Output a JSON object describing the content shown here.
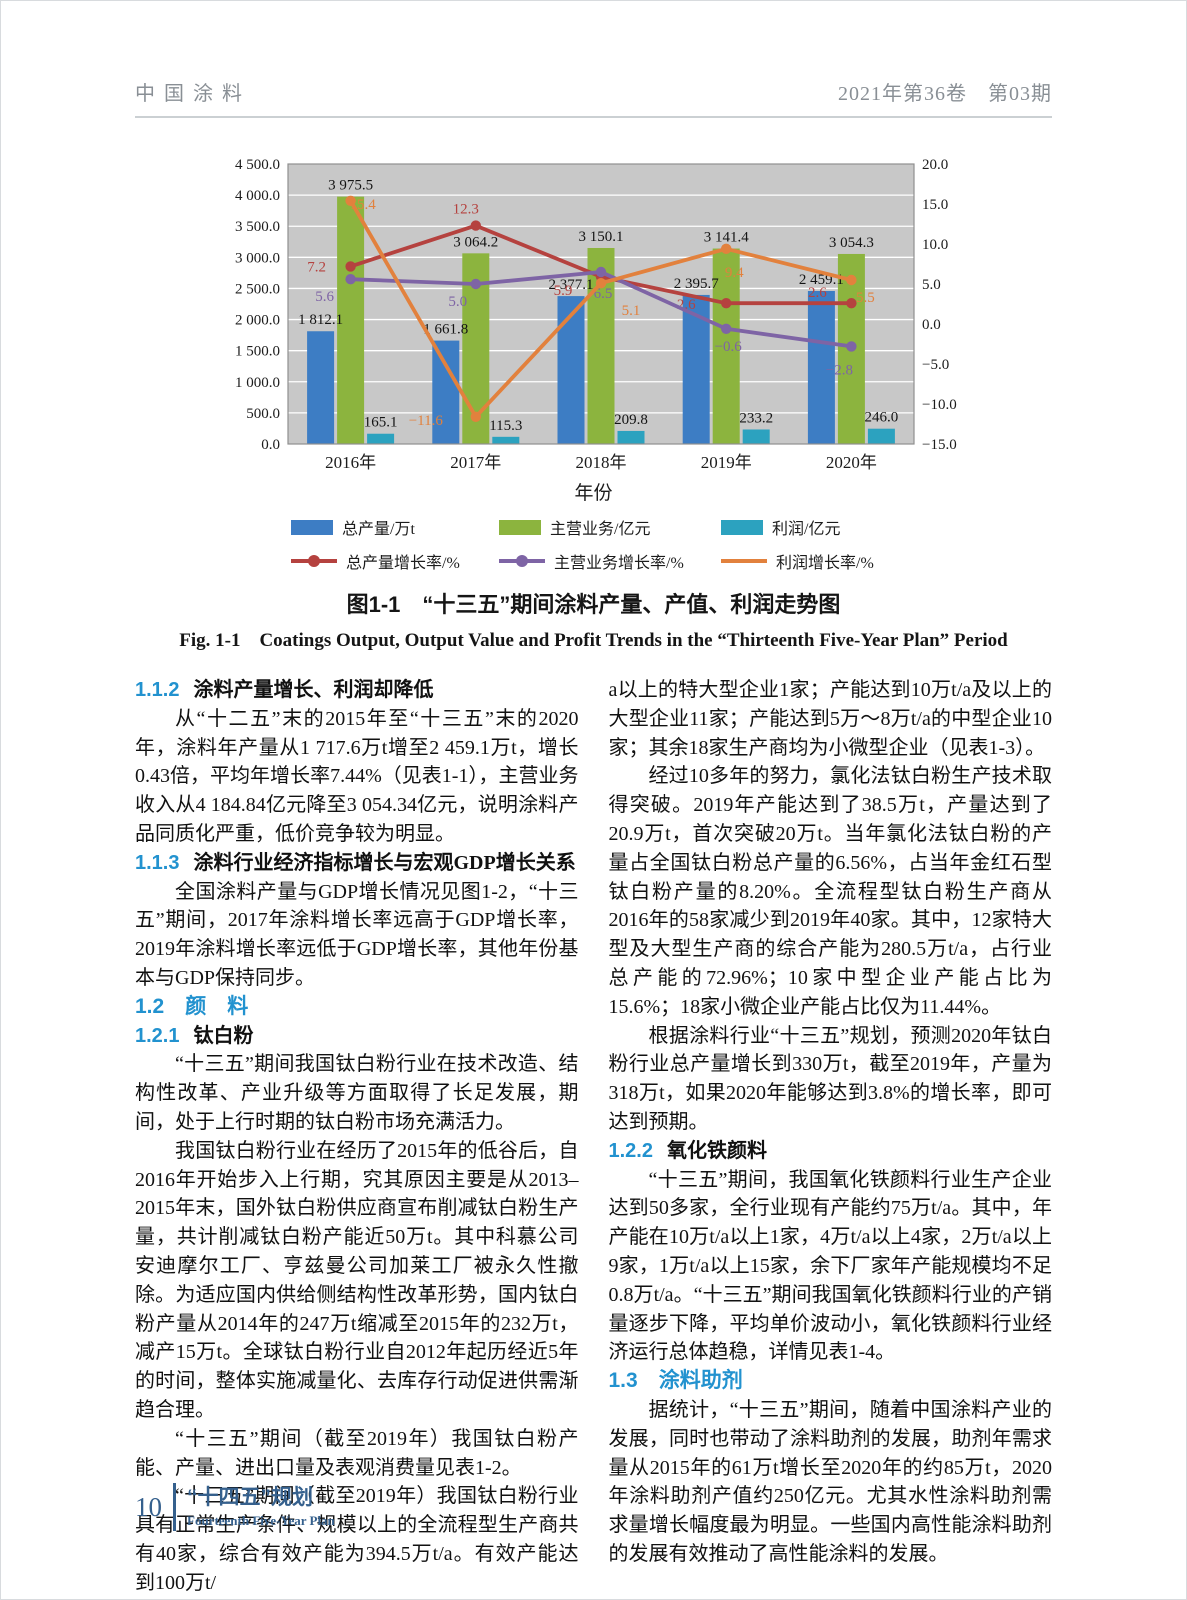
{
  "header": {
    "journal": "中国涂料",
    "issue": "2021年第36卷　第03期"
  },
  "chart_data": {
    "type": "combo-bar-line",
    "categories": [
      "2016年",
      "2017年",
      "2018年",
      "2019年",
      "2020年"
    ],
    "xlabel": "年份",
    "plot_bg": "#c8c8c8",
    "grid_color": "#ffffff",
    "left_axis": {
      "min": 0,
      "max": 4500,
      "step": 500,
      "tick_labels": [
        "4 500.0",
        "4 000.0",
        "3 500.0",
        "3 000.0",
        "2 500.0",
        "2 000.0",
        "1 500.0",
        "1 000.0",
        "500.0",
        "0.0"
      ]
    },
    "right_axis": {
      "min": -15,
      "max": 20,
      "step": 5,
      "tick_labels": [
        "20.0",
        "15.0",
        "10.0",
        "5.0",
        "0.0",
        "−5.0",
        "−10.0",
        "−15.0"
      ]
    },
    "bar_series": [
      {
        "name": "总产量/万t",
        "color": "#3d7dc4",
        "values": [
          1812.1,
          1661.8,
          2377.1,
          2395.7,
          2459.1
        ],
        "labels": [
          "1 812.1",
          "1 661.8",
          "2 377.1",
          "2 395.7",
          "2 459.1"
        ]
      },
      {
        "name": "主营业务/亿元",
        "color": "#8cb43e",
        "values": [
          3975.5,
          3064.2,
          3150.1,
          3141.4,
          3054.3
        ],
        "labels": [
          "3 975.5",
          "3 064.2",
          "3 150.1",
          "3 141.4",
          "3 054.3"
        ]
      },
      {
        "name": "利润/亿元",
        "color": "#2ca2bf",
        "values": [
          165.1,
          115.3,
          209.8,
          233.2,
          246.0
        ],
        "labels": [
          "165.1",
          "115.3",
          "209.8",
          "233.2",
          "246.0"
        ]
      }
    ],
    "line_series": [
      {
        "name": "总产量增长率/%",
        "color": "#b5423f",
        "marker": true,
        "values": [
          7.2,
          12.3,
          5.9,
          2.6,
          2.6
        ],
        "labels": [
          "7.2",
          "12.3",
          "5.9",
          "2.6",
          "2.6"
        ]
      },
      {
        "name": "主营业务增长率/%",
        "color": "#7e64a5",
        "marker": true,
        "values": [
          5.6,
          5.0,
          6.5,
          -0.6,
          -2.8
        ],
        "labels": [
          "5.6",
          "5.0",
          "6.5",
          "−0.6",
          "−2.8"
        ]
      },
      {
        "name": "利润增长率/%",
        "color": "#e2813d",
        "marker": false,
        "values": [
          15.4,
          -11.6,
          5.1,
          9.4,
          5.5
        ],
        "labels": [
          "15.4",
          "−11.6",
          "5.1",
          "9.4",
          "5.5"
        ]
      }
    ]
  },
  "figure": {
    "caption_cn": "图1-1　“十三五”期间涂料产量、产值、利润走势图",
    "caption_en": "Fig. 1-1　Coatings Output, Output Value and Profit Trends in the “Thirteenth Five-Year Plan” Period"
  },
  "columns": {
    "left": [
      {
        "t": "h3",
        "num": "1.1.2",
        "title": "涂料产量增长、利润却降低"
      },
      {
        "t": "p",
        "text": "从“十二五”末的2015年至“十三五”末的2020年，涂料年产量从1 717.6万t增至2 459.1万t，增长0.43倍，平均年增长率7.44%（见表1-1），主营业务收入从4 184.84亿元降至3 054.34亿元，说明涂料产品同质化严重，低价竞争较为明显。"
      },
      {
        "t": "h3",
        "num": "1.1.3",
        "title": "涂料行业经济指标增长与宏观GDP增长关系"
      },
      {
        "t": "p",
        "text": "全国涂料产量与GDP增长情况见图1-2，“十三五”期间，2017年涂料增长率远高于GDP增长率，2019年涂料增长率远低于GDP增长率，其他年份基本与GDP保持同步。"
      },
      {
        "t": "h2",
        "text": "1.2　颜　料"
      },
      {
        "t": "h3",
        "num": "1.2.1",
        "title": "钛白粉"
      },
      {
        "t": "p",
        "text": "“十三五”期间我国钛白粉行业在技术改造、结构性改革、产业升级等方面取得了长足发展，期间，处于上行时期的钛白粉市场充满活力。"
      },
      {
        "t": "p",
        "text": "我国钛白粉行业在经历了2015年的低谷后，自2016年开始步入上行期，究其原因主要是从2013–2015年末，国外钛白粉供应商宣布削减钛白粉生产量，共计削减钛白粉产能近50万t。其中科慕公司安迪摩尔工厂、亨兹曼公司加莱工厂被永久性撤除。为适应国内供给侧结构性改革形势，国内钛白粉产量从2014年的247万t缩减至2015年的232万t，减产15万t。全球钛白粉行业自2012年起历经近5年的时间，整体实施减量化、去库存行动促进供需渐趋合理。"
      },
      {
        "t": "p",
        "text": "“十三五”期间（截至2019年）我国钛白粉产能、产量、进出口量及表观消费量见表1-2。"
      },
      {
        "t": "p",
        "text": "“十三五”期间（截至2019年）我国钛白粉行业具有正常生产条件、规模以上的全流程型生产商共有40家，综合有效产能为394.5万t/a。有效产能达到100万t/"
      }
    ],
    "right": [
      {
        "t": "pc",
        "text": "a以上的特大型企业1家；产能达到10万t/a及以上的大型企业11家；产能达到5万～8万t/a的中型企业10家；其余18家生产商均为小微型企业（见表1-3）。"
      },
      {
        "t": "p",
        "text": "经过10多年的努力，氯化法钛白粉生产技术取得突破。2019年产能达到了38.5万t，产量达到了20.9万t，首次突破20万t。当年氯化法钛白粉的产量占全国钛白粉总产量的6.56%，占当年金红石型钛白粉产量的8.20%。全流程型钛白粉生产商从2016年的58家减少到2019年40家。其中，12家特大型及大型生产商的综合产能为280.5万t/a，占行业总产能的72.96%；10家中型企业产能占比为15.6%；18家小微企业产能占比仅为11.44%。"
      },
      {
        "t": "p",
        "text": "根据涂料行业“十三五”规划，预测2020年钛白粉行业总产量增长到330万t，截至2019年，产量为318万t，如果2020年能够达到3.8%的增长率，即可达到预期。"
      },
      {
        "t": "h3",
        "num": "1.2.2",
        "title": "氧化铁颜料"
      },
      {
        "t": "p",
        "text": "“十三五”期间，我国氧化铁颜料行业生产企业达到50多家，全行业现有产能约75万t/a。其中，年产能在10万t/a以上1家，4万t/a以上4家，2万t/a以上9家，1万t/a以上15家，余下厂家年产能规模均不足0.8万t/a。“十三五”期间我国氧化铁颜料行业的产销量逐步下降，平均单价波动小，氧化铁颜料行业经济运行总体趋稳，详情见表1-4。"
      },
      {
        "t": "h2",
        "text": "1.3　涂料助剂"
      },
      {
        "t": "p",
        "text": "据统计，“十三五”期间，随着中国涂料产业的发展，同时也带动了涂料助剂的发展，助剂年需求量从2015年的61万t增长至2020年的约85万t，2020年涂料助剂产值约250亿元。尤其水性涂料助剂需求量增长幅度最为明显。一些国内高性能涂料助剂的发展有效推动了高性能涂料的发展。"
      }
    ]
  },
  "footer": {
    "page_number": "10",
    "plan_cn": "“十四五”规划",
    "plan_en": "Fourteenth Five-Year Plan"
  }
}
